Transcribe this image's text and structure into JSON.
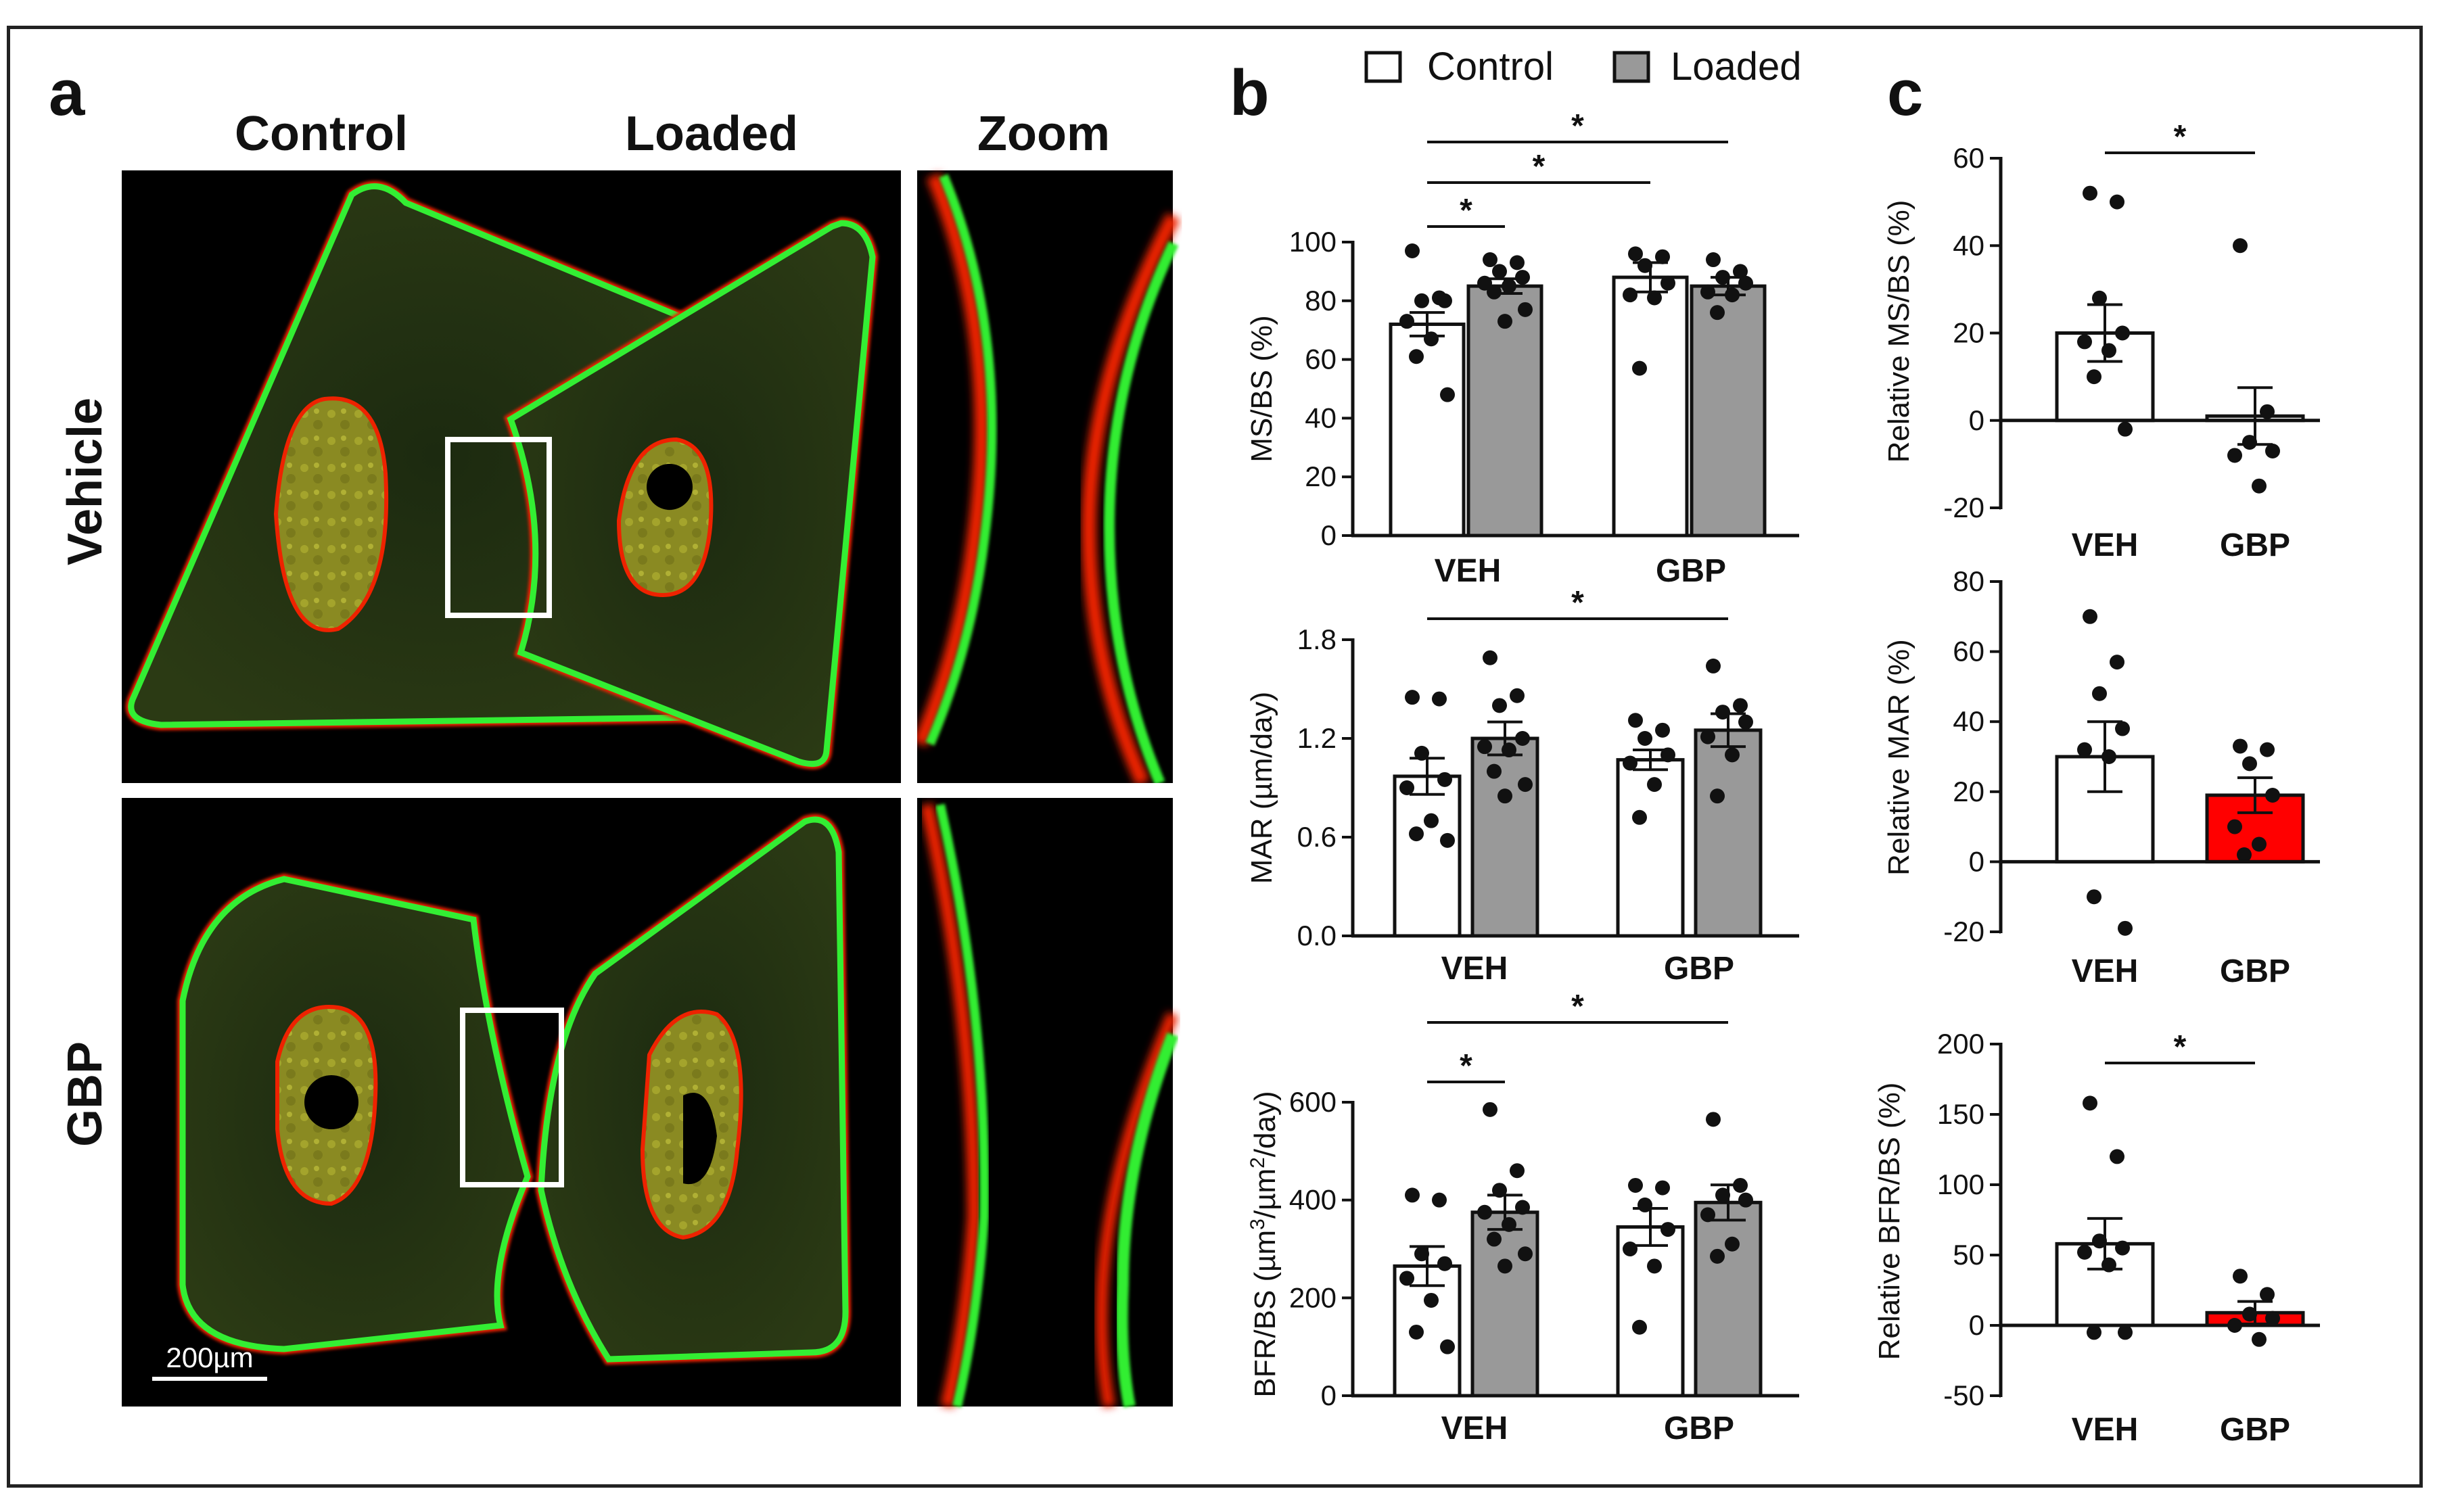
{
  "panel_labels": [
    "a",
    "b",
    "c"
  ],
  "panel_a": {
    "column_headers": [
      "Control",
      "Loaded",
      "Zoom"
    ],
    "row_labels": [
      "Vehicle",
      "GBP"
    ],
    "scale_bar": "200µm"
  },
  "legend": {
    "control": "Control",
    "loaded": "Loaded"
  },
  "colors": {
    "control_fill": "#ffffff",
    "loaded_fill": "#999999",
    "relative_gbp_fill": "#ff0000",
    "calcein_green": "#33ee33",
    "alizarin_red": "#ee2200",
    "bone_background": "#223311"
  },
  "significance_marker": "*",
  "chart_data": [
    {
      "id": "b1",
      "type": "bar",
      "ylabel": "MS/BS (%)",
      "ylim": [
        0,
        100
      ],
      "yticks": [
        "0",
        "20",
        "40",
        "60",
        "80",
        "100"
      ],
      "groups": [
        "VEH",
        "GBP"
      ],
      "series": [
        {
          "name": "Control",
          "means": [
            72,
            88
          ],
          "sem": [
            4,
            5
          ],
          "points": [
            [
              97,
              81,
              80,
              80,
              73,
              67,
              61,
              48
            ],
            [
              96,
              95,
              92,
              86,
              82,
              81,
              57
            ]
          ]
        },
        {
          "name": "Loaded",
          "means": [
            85,
            85
          ],
          "sem": [
            2.5,
            3
          ],
          "points": [
            [
              94,
              93,
              90,
              88,
              86,
              85,
              83,
              77,
              73
            ],
            [
              94,
              90,
              88,
              86,
              83,
              82,
              76
            ]
          ]
        }
      ],
      "significance": [
        {
          "from": "VEH Control",
          "to": "VEH Loaded",
          "label": "*"
        },
        {
          "from": "VEH Control",
          "to": "GBP Control",
          "label": "*"
        },
        {
          "from": "VEH Control",
          "to": "GBP Loaded",
          "label": "*"
        }
      ]
    },
    {
      "id": "b2",
      "type": "bar",
      "ylabel": "MAR (µm/day)",
      "ylim": [
        0,
        1.8
      ],
      "yticks": [
        "0.0",
        "0.6",
        "1.2",
        "1.8"
      ],
      "groups": [
        "VEH",
        "GBP"
      ],
      "series": [
        {
          "name": "Control",
          "means": [
            0.97,
            1.07
          ],
          "sem": [
            0.11,
            0.06
          ],
          "points": [
            [
              1.45,
              1.44,
              1.11,
              0.95,
              0.9,
              0.7,
              0.62,
              0.58
            ],
            [
              1.31,
              1.25,
              1.2,
              1.1,
              1.05,
              0.92,
              0.72
            ]
          ]
        },
        {
          "name": "Loaded",
          "means": [
            1.2,
            1.25
          ],
          "sem": [
            0.1,
            0.1
          ],
          "points": [
            [
              1.69,
              1.46,
              1.4,
              1.2,
              1.15,
              1.13,
              1.0,
              0.92,
              0.85
            ],
            [
              1.64,
              1.4,
              1.36,
              1.3,
              1.21,
              1.1,
              0.85
            ]
          ]
        }
      ],
      "significance": [
        {
          "from": "VEH Control",
          "to": "GBP Loaded",
          "label": "*"
        }
      ]
    },
    {
      "id": "b3",
      "type": "bar",
      "ylabel_base": "BFR/BS (µm",
      "ylabel_sup1": "3",
      "ylabel_mid": "/µm",
      "ylabel_sup2": "2",
      "ylabel_end": "/day)",
      "ylim": [
        0,
        600
      ],
      "yticks": [
        "0",
        "200",
        "400",
        "600"
      ],
      "groups": [
        "VEH",
        "GBP"
      ],
      "series": [
        {
          "name": "Control",
          "means": [
            265,
            345
          ],
          "sem": [
            40,
            38
          ],
          "points": [
            [
              410,
              400,
              290,
              270,
              240,
              195,
              130,
              100
            ],
            [
              430,
              425,
              390,
              340,
              300,
              265,
              140
            ]
          ]
        },
        {
          "name": "Loaded",
          "means": [
            375,
            395
          ],
          "sem": [
            35,
            36
          ],
          "points": [
            [
              585,
              460,
              420,
              385,
              375,
              350,
              320,
              290,
              265
            ],
            [
              565,
              430,
              410,
              400,
              370,
              310,
              285
            ]
          ]
        }
      ],
      "significance": [
        {
          "from": "VEH Control",
          "to": "VEH Loaded",
          "label": "*"
        },
        {
          "from": "VEH Control",
          "to": "GBP Loaded",
          "label": "*"
        }
      ]
    },
    {
      "id": "c1",
      "type": "bar",
      "ylabel": "Relative MS/BS (%)",
      "ylim": [
        -20,
        60
      ],
      "yticks": [
        "-20",
        "0",
        "20",
        "40",
        "60"
      ],
      "categories": [
        "VEH",
        "GBP"
      ],
      "means": [
        20,
        1
      ],
      "sem": [
        6.5,
        6.5
      ],
      "points": [
        [
          52,
          50,
          28,
          20,
          18,
          16,
          10,
          -2
        ],
        [
          40,
          2,
          -5,
          -7,
          -8,
          -15
        ]
      ],
      "significance": [
        {
          "from": "VEH",
          "to": "GBP",
          "label": "*"
        }
      ]
    },
    {
      "id": "c2",
      "type": "bar",
      "ylabel": "Relative MAR (%)",
      "ylim": [
        -20,
        80
      ],
      "yticks": [
        "-20",
        "0",
        "20",
        "40",
        "60",
        "80"
      ],
      "categories": [
        "VEH",
        "GBP"
      ],
      "means": [
        30,
        19
      ],
      "sem": [
        10,
        5
      ],
      "points": [
        [
          70,
          57,
          48,
          38,
          32,
          30,
          -10,
          -19
        ],
        [
          33,
          32,
          28,
          19,
          10,
          5,
          2
        ]
      ],
      "significance": []
    },
    {
      "id": "c3",
      "type": "bar",
      "ylabel": "Relative BFR/BS (%)",
      "ylim": [
        -50,
        200
      ],
      "yticks": [
        "-50",
        "0",
        "50",
        "100",
        "150",
        "200"
      ],
      "categories": [
        "VEH",
        "GBP"
      ],
      "means": [
        58,
        9
      ],
      "sem": [
        18,
        8
      ],
      "points": [
        [
          158,
          120,
          60,
          55,
          52,
          43,
          -5,
          -5
        ],
        [
          35,
          22,
          8,
          5,
          0,
          -10
        ]
      ],
      "significance": [
        {
          "from": "VEH",
          "to": "GBP",
          "label": "*"
        }
      ]
    }
  ]
}
